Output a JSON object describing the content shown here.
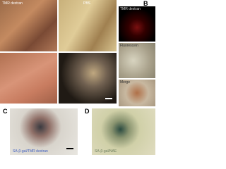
{
  "panels": [
    {
      "letter": null,
      "labels": [
        "TMR dextran",
        "PBS"
      ]
    },
    {
      "letter": "B",
      "labels": [
        "TMR dextran",
        "Fluorescein",
        "Merge"
      ]
    },
    {
      "letter": "C",
      "labels": [
        "SA-β-gal/TMR dextran"
      ]
    },
    {
      "letter": "D",
      "labels": [
        "SA-β-gal/NAE"
      ]
    }
  ]
}
